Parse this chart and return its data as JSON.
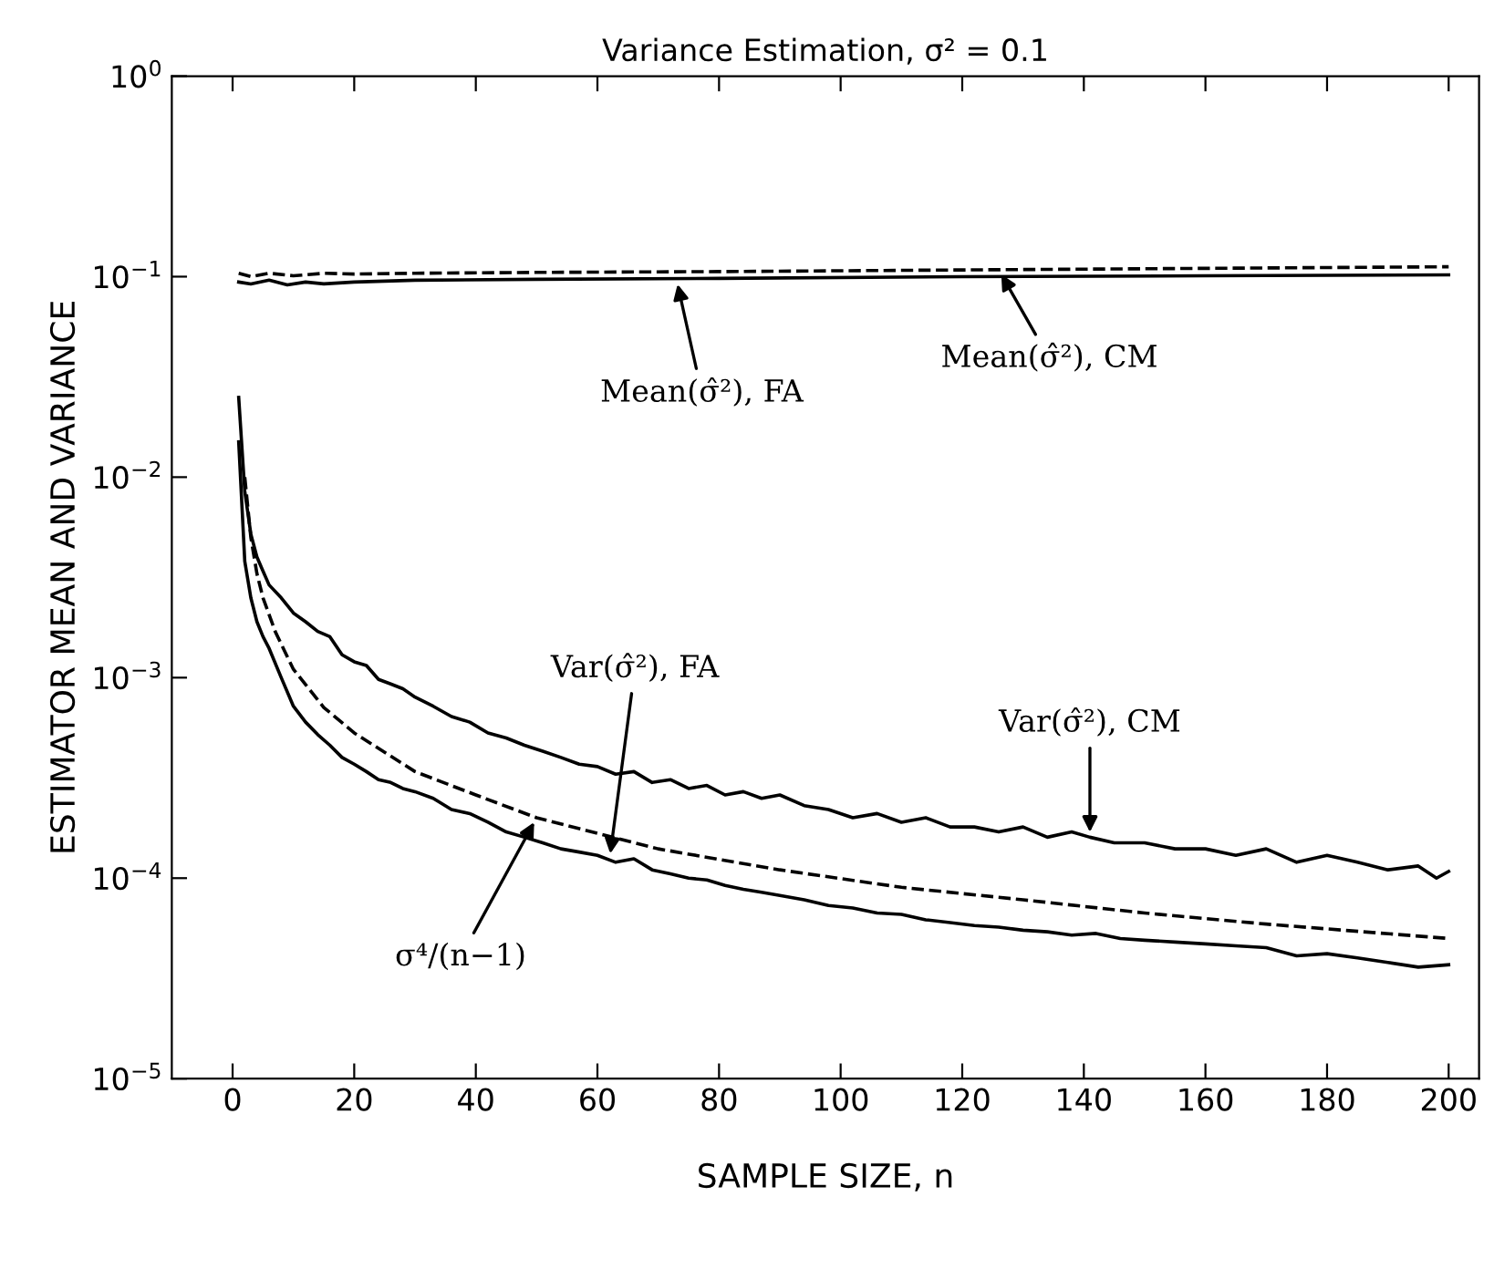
{
  "chart_data": {
    "type": "line",
    "title": "Variance Estimation, σ² = 0.1",
    "xlabel": "SAMPLE SIZE, n",
    "ylabel": "ESTIMATOR MEAN AND VARIANCE",
    "log": "y",
    "xlim": [
      -10,
      205
    ],
    "ylim": [
      1e-05,
      1
    ],
    "xticks": [
      0,
      20,
      40,
      60,
      80,
      100,
      120,
      140,
      160,
      180,
      200
    ],
    "yticks": [
      {
        "value": 1e-05,
        "label": "10$^{−5}$"
      },
      {
        "value": 0.0001,
        "label": "10$^{−4}$"
      },
      {
        "value": 0.001,
        "label": "10$^{−3}$"
      },
      {
        "value": 0.01,
        "label": "10$^{−2}$"
      },
      {
        "value": 0.1,
        "label": "10$^{−1}$"
      },
      {
        "value": 1,
        "label": "10$^{0}$"
      }
    ],
    "grid": false,
    "legend": false,
    "marker": "none",
    "series": [
      {
        "color": "#000000",
        "line_style": "dashed",
        "x": [
          1,
          3,
          6,
          10,
          15,
          20,
          30,
          50,
          80,
          120,
          160,
          200
        ],
        "values": [
          0.104,
          0.1,
          0.104,
          0.101,
          0.104,
          0.103,
          0.104,
          0.105,
          0.106,
          0.108,
          0.11,
          0.112
        ]
      },
      {
        "color": "#000000",
        "line_style": "solid",
        "x": [
          1,
          3,
          6,
          9,
          12,
          15,
          20,
          30,
          50,
          80,
          120,
          160,
          200
        ],
        "values": [
          0.094,
          0.092,
          0.096,
          0.091,
          0.094,
          0.092,
          0.094,
          0.096,
          0.097,
          0.098,
          0.1,
          0.101,
          0.102
        ]
      },
      {
        "color": "#000000",
        "line_style": "solid",
        "x": [
          1,
          2,
          3,
          4,
          5,
          6,
          8,
          10,
          12,
          14,
          16,
          18,
          20,
          22,
          24,
          26,
          28,
          30,
          33,
          36,
          39,
          42,
          45,
          48,
          51,
          54,
          57,
          60,
          63,
          66,
          69,
          72,
          75,
          78,
          81,
          84,
          87,
          90,
          94,
          98,
          102,
          106,
          110,
          114,
          118,
          122,
          126,
          130,
          134,
          138,
          141,
          145,
          150,
          155,
          160,
          165,
          170,
          175,
          180,
          185,
          190,
          195,
          198,
          200
        ],
        "values": [
          0.025,
          0.0085,
          0.0052,
          0.004,
          0.0034,
          0.0029,
          0.0025,
          0.0021,
          0.0019,
          0.0017,
          0.0016,
          0.0013,
          0.0012,
          0.00115,
          0.00098,
          0.00093,
          0.00088,
          0.0008,
          0.00072,
          0.00064,
          0.0006,
          0.00053,
          0.0005,
          0.00046,
          0.00043,
          0.0004,
          0.00037,
          0.00036,
          0.00033,
          0.00034,
          0.0003,
          0.00031,
          0.00028,
          0.00029,
          0.00026,
          0.00027,
          0.00025,
          0.00026,
          0.00023,
          0.00022,
          0.0002,
          0.00021,
          0.00019,
          0.0002,
          0.00018,
          0.00018,
          0.00017,
          0.00018,
          0.00016,
          0.00017,
          0.00016,
          0.00015,
          0.00015,
          0.00014,
          0.00014,
          0.00013,
          0.00014,
          0.00012,
          0.00013,
          0.00012,
          0.00011,
          0.000115,
          0.0001,
          0.000108
        ]
      },
      {
        "color": "#000000",
        "line_style": "solid",
        "x": [
          1,
          2,
          3,
          4,
          5,
          6,
          8,
          10,
          12,
          14,
          16,
          18,
          20,
          22,
          24,
          26,
          28,
          30,
          33,
          36,
          39,
          42,
          45,
          48,
          51,
          54,
          57,
          60,
          63,
          66,
          69,
          72,
          75,
          78,
          81,
          84,
          87,
          90,
          94,
          98,
          102,
          106,
          110,
          114,
          118,
          122,
          126,
          130,
          134,
          138,
          142,
          146,
          150,
          155,
          160,
          165,
          170,
          175,
          180,
          185,
          190,
          195,
          200
        ],
        "values": [
          0.015,
          0.0038,
          0.0025,
          0.0019,
          0.0016,
          0.0014,
          0.001,
          0.00072,
          0.0006,
          0.00052,
          0.00046,
          0.0004,
          0.00037,
          0.00034,
          0.00031,
          0.0003,
          0.00028,
          0.00027,
          0.00025,
          0.00022,
          0.00021,
          0.00019,
          0.00017,
          0.00016,
          0.00015,
          0.00014,
          0.000135,
          0.00013,
          0.00012,
          0.000125,
          0.00011,
          0.000105,
          0.0001,
          9.8e-05,
          9.2e-05,
          8.8e-05,
          8.5e-05,
          8.2e-05,
          7.8e-05,
          7.3e-05,
          7.1e-05,
          6.7e-05,
          6.6e-05,
          6.2e-05,
          6e-05,
          5.8e-05,
          5.7e-05,
          5.5e-05,
          5.4e-05,
          5.2e-05,
          5.3e-05,
          5e-05,
          4.9e-05,
          4.8e-05,
          4.7e-05,
          4.6e-05,
          4.5e-05,
          4.1e-05,
          4.2e-05,
          4e-05,
          3.8e-05,
          3.6e-05,
          3.7e-05
        ]
      },
      {
        "color": "#000000",
        "line_style": "dashed",
        "x": [
          2,
          3,
          4,
          5,
          7,
          10,
          15,
          20,
          30,
          40,
          50,
          70,
          90,
          110,
          130,
          150,
          170,
          200
        ],
        "values": [
          0.01,
          0.005,
          0.0033,
          0.0025,
          0.0017,
          0.0011,
          0.00071,
          0.00053,
          0.00034,
          0.00026,
          0.0002,
          0.00014,
          0.00011,
          9e-05,
          7.8e-05,
          6.7e-05,
          5.9e-05,
          5e-05
        ]
      }
    ],
    "annotations": [
      {
        "text": "Mean(σ̂²), FA",
        "x": 73,
        "y": 0.097
      },
      {
        "text": "Mean(σ̂²), CM",
        "x": 126,
        "y": 0.108
      },
      {
        "text": "Var(σ̂²), FA",
        "x": 62,
        "y": 0.000125
      },
      {
        "text": "Var(σ̂²), CM",
        "x": 141,
        "y": 0.00016
      },
      {
        "text": "σ⁴/(n−1)",
        "x": 50,
        "y": 0.0002
      }
    ]
  }
}
